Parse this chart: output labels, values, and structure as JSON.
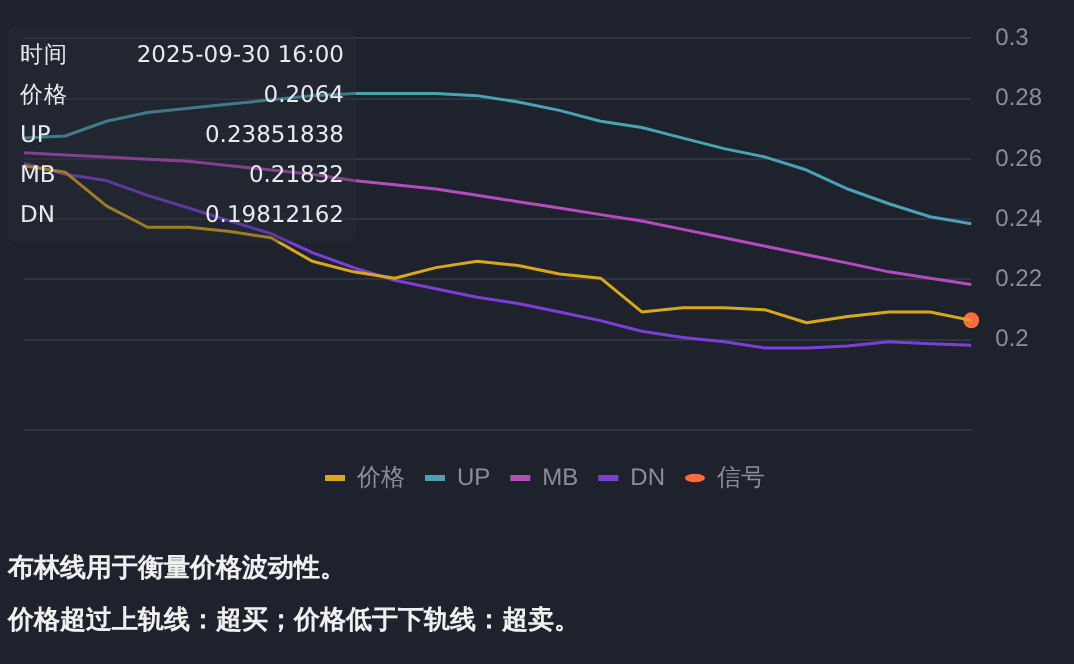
{
  "chart_data": {
    "type": "line",
    "categories": [
      null,
      null,
      null,
      null,
      null,
      null,
      null,
      null,
      null,
      null,
      null,
      null,
      null,
      null,
      null,
      null,
      null,
      null,
      null,
      null,
      null,
      null,
      null,
      null
    ],
    "series": [
      {
        "name": "价格",
        "color": "#d9a81a",
        "values": [
          0.2577,
          0.2556,
          0.2444,
          0.2373,
          0.2373,
          0.2359,
          0.2338,
          0.226,
          0.2225,
          0.2204,
          0.2239,
          0.226,
          0.2246,
          0.2218,
          0.2204,
          0.2092,
          0.2106,
          0.2106,
          0.2099,
          0.2056,
          0.2077,
          0.2092,
          0.2092,
          0.2064
        ]
      },
      {
        "name": "UP",
        "color": "#4aa3b3",
        "values": [
          0.2669,
          0.2676,
          0.2725,
          0.2754,
          0.2768,
          0.2782,
          0.2796,
          0.281,
          0.2817,
          0.2817,
          0.2817,
          0.281,
          0.2789,
          0.2761,
          0.2725,
          0.2704,
          0.2669,
          0.2634,
          0.2606,
          0.2563,
          0.25,
          0.2451,
          0.2408,
          0.2385
        ]
      },
      {
        "name": "MB",
        "color": "#b44cc0",
        "values": [
          0.262,
          0.2613,
          0.2606,
          0.2599,
          0.2592,
          0.2577,
          0.2563,
          0.2549,
          0.2528,
          0.2514,
          0.25,
          0.2479,
          0.2458,
          0.2437,
          0.2415,
          0.2394,
          0.2366,
          0.2338,
          0.231,
          0.2282,
          0.2254,
          0.2225,
          0.2204,
          0.2183
        ]
      },
      {
        "name": "DN",
        "color": "#7b3fd8",
        "values": [
          0.2585,
          0.2549,
          0.2528,
          0.2479,
          0.2437,
          0.2394,
          0.2352,
          0.2289,
          0.2239,
          0.2197,
          0.2169,
          0.2141,
          0.212,
          0.2092,
          0.2063,
          0.2028,
          0.2007,
          0.1993,
          0.1972,
          0.1972,
          0.1979,
          0.1993,
          0.1986,
          0.1981
        ]
      },
      {
        "name": "信号",
        "type": "scatter",
        "marker": "circle",
        "color": "#ff6b3d",
        "values": [
          null,
          null,
          null,
          null,
          null,
          null,
          null,
          null,
          null,
          null,
          null,
          null,
          null,
          null,
          null,
          null,
          null,
          null,
          null,
          null,
          null,
          null,
          null,
          0.2064
        ]
      }
    ],
    "ylim": [
      0.17,
      0.3
    ],
    "yticks": [
      0.2,
      0.22,
      0.24,
      0.26,
      0.28,
      0.3
    ],
    "tick_labels": "y",
    "grid": "y",
    "legend": "bottom",
    "marker": "none",
    "annotations": [
      "时间 2025-09-30 16:00",
      "价格 0.2064",
      "UP 0.23851838",
      "MB 0.21832",
      "DN 0.19812162",
      "布林线用于衡量价格波动性。",
      "价格超过上轨线：超买；价格低于下轨线：超卖。"
    ]
  }
}
